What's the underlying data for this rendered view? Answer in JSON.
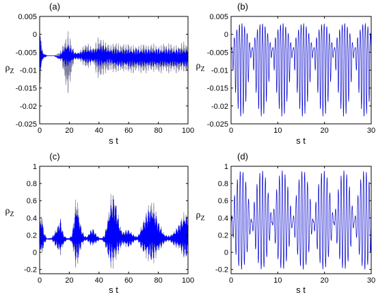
{
  "chart_data": [
    {
      "type": "line",
      "panel_label": "(a)",
      "xlabel": "s t",
      "ylabel": "ρ",
      "ylabel_sub": "Z",
      "xlim": [
        0,
        100
      ],
      "ylim": [
        -0.025,
        0.005
      ],
      "xticks": [
        "0",
        "20",
        "40",
        "60",
        "80",
        "100"
      ],
      "yticks": [
        "-0.025",
        "-0.02",
        "-0.015",
        "-0.01",
        "-0.005",
        "0",
        "0.005"
      ],
      "colors": {
        "envelope": "#7f7fa0",
        "signal": "#0000ff"
      },
      "grid": false,
      "envelope_series": {
        "x": [
          0,
          1,
          2,
          5,
          8,
          10,
          13,
          15,
          16,
          17,
          18,
          19,
          20,
          21,
          22,
          23,
          24,
          26,
          28,
          30,
          32,
          34,
          36,
          38,
          40,
          42,
          44,
          46,
          48,
          50,
          52,
          54,
          56,
          58,
          60,
          62,
          64,
          66,
          68,
          70,
          72,
          74,
          76,
          78,
          80,
          82,
          84,
          86,
          88,
          90,
          92,
          94,
          96,
          98,
          100
        ],
        "upper": [
          -0.001,
          0.001,
          -0.005,
          -0.006,
          -0.006,
          -0.006,
          -0.005,
          -0.004,
          -0.002,
          -0.001,
          0.0,
          0.001,
          0.0,
          -0.001,
          -0.003,
          -0.004,
          -0.005,
          -0.005,
          -0.004,
          -0.003,
          -0.002,
          -0.003,
          -0.004,
          -0.002,
          0.0,
          -0.001,
          -0.002,
          -0.002,
          -0.003,
          -0.002,
          -0.002,
          -0.003,
          -0.002,
          -0.003,
          -0.002,
          -0.003,
          -0.003,
          -0.003,
          -0.003,
          -0.002,
          -0.003,
          -0.003,
          -0.002,
          -0.003,
          -0.003,
          -0.003,
          -0.002,
          -0.003,
          -0.002,
          -0.003,
          -0.003,
          -0.003,
          -0.002,
          -0.002,
          -0.003
        ],
        "lower": [
          -0.015,
          -0.011,
          -0.007,
          -0.006,
          -0.006,
          -0.006,
          -0.007,
          -0.008,
          -0.011,
          -0.013,
          -0.016,
          -0.017,
          -0.015,
          -0.013,
          -0.01,
          -0.008,
          -0.007,
          -0.007,
          -0.008,
          -0.009,
          -0.01,
          -0.009,
          -0.008,
          -0.011,
          -0.013,
          -0.012,
          -0.011,
          -0.011,
          -0.01,
          -0.011,
          -0.011,
          -0.01,
          -0.011,
          -0.01,
          -0.011,
          -0.011,
          -0.011,
          -0.01,
          -0.011,
          -0.011,
          -0.011,
          -0.01,
          -0.011,
          -0.01,
          -0.011,
          -0.011,
          -0.01,
          -0.011,
          -0.011,
          -0.01,
          -0.011,
          -0.011,
          -0.01,
          -0.011,
          -0.011
        ]
      },
      "signal_series": {
        "x": [
          0,
          1,
          2,
          5,
          8,
          10,
          13,
          15,
          16,
          17,
          18,
          19,
          20,
          21,
          22,
          23,
          24,
          26,
          28,
          30,
          32,
          34,
          36,
          38,
          40,
          42,
          44,
          46,
          48,
          50,
          52,
          54,
          56,
          58,
          60,
          62,
          64,
          66,
          68,
          70,
          72,
          74,
          76,
          78,
          80,
          82,
          84,
          86,
          88,
          90,
          92,
          94,
          96,
          98,
          100
        ],
        "upper": [
          0.0,
          -0.002,
          -0.005,
          -0.006,
          -0.006,
          -0.006,
          -0.006,
          -0.005,
          -0.004,
          -0.003,
          -0.003,
          -0.002,
          -0.003,
          -0.004,
          -0.004,
          -0.005,
          -0.005,
          -0.005,
          -0.005,
          -0.004,
          -0.004,
          -0.004,
          -0.004,
          -0.004,
          -0.003,
          -0.003,
          -0.003,
          -0.004,
          -0.004,
          -0.004,
          -0.004,
          -0.004,
          -0.004,
          -0.004,
          -0.004,
          -0.004,
          -0.004,
          -0.004,
          -0.004,
          -0.004,
          -0.004,
          -0.004,
          -0.004,
          -0.004,
          -0.004,
          -0.004,
          -0.004,
          -0.004,
          -0.004,
          -0.004,
          -0.004,
          -0.004,
          -0.004,
          -0.004,
          -0.004
        ],
        "lower": [
          -0.012,
          -0.01,
          -0.007,
          -0.006,
          -0.006,
          -0.006,
          -0.007,
          -0.007,
          -0.008,
          -0.009,
          -0.009,
          -0.009,
          -0.009,
          -0.008,
          -0.008,
          -0.007,
          -0.007,
          -0.007,
          -0.007,
          -0.008,
          -0.008,
          -0.008,
          -0.008,
          -0.008,
          -0.009,
          -0.009,
          -0.009,
          -0.008,
          -0.008,
          -0.009,
          -0.009,
          -0.009,
          -0.009,
          -0.009,
          -0.009,
          -0.009,
          -0.009,
          -0.009,
          -0.009,
          -0.009,
          -0.009,
          -0.009,
          -0.009,
          -0.009,
          -0.009,
          -0.009,
          -0.009,
          -0.009,
          -0.009,
          -0.009,
          -0.009,
          -0.009,
          -0.009,
          -0.009,
          -0.009
        ]
      }
    },
    {
      "type": "line",
      "panel_label": "(b)",
      "xlabel": "s t",
      "ylabel": "ρ",
      "ylabel_sub": "Z",
      "xlim": [
        0,
        30
      ],
      "ylim": [
        -0.025,
        0.005
      ],
      "xticks": [
        "0",
        "10",
        "20",
        "30"
      ],
      "yticks": [
        "-0.025",
        "-0.02",
        "-0.015",
        "-0.01",
        "-0.005",
        "0",
        "0.005"
      ],
      "colors": {
        "signal": "#0000cc"
      },
      "grid": false,
      "oscillation": {
        "baseline": -0.0045,
        "carrier_period": 0.55,
        "beat_period": 4.4,
        "upper_peak": 0.003,
        "lower_peak": -0.023
      }
    },
    {
      "type": "line",
      "panel_label": "(c)",
      "xlabel": "s t",
      "ylabel": "ρ",
      "ylabel_sub": "Z",
      "xlim": [
        0,
        100
      ],
      "ylim": [
        -0.25,
        1.0
      ],
      "xticks": [
        "0",
        "20",
        "40",
        "60",
        "80",
        "100"
      ],
      "yticks": [
        "-0.2",
        "0",
        "0.2",
        "0.4",
        "0.6",
        "0.8",
        "1"
      ],
      "colors": {
        "envelope": "#7f7fa0",
        "signal": "#0000ff"
      },
      "grid": false,
      "envelope_series": {
        "x": [
          0,
          1,
          3,
          5,
          8,
          10,
          12,
          14,
          16,
          18,
          20,
          22,
          24,
          25,
          26,
          28,
          30,
          32,
          34,
          36,
          38,
          40,
          42,
          44,
          46,
          48,
          50,
          52,
          54,
          56,
          58,
          60,
          62,
          64,
          66,
          68,
          70,
          72,
          74,
          76,
          78,
          80,
          82,
          84,
          86,
          88,
          90,
          92,
          94,
          96,
          98,
          100
        ],
        "upper": [
          0.22,
          0.55,
          0.25,
          0.16,
          0.17,
          0.24,
          0.32,
          0.4,
          0.22,
          0.17,
          0.16,
          0.22,
          0.58,
          0.74,
          0.55,
          0.3,
          0.2,
          0.18,
          0.26,
          0.28,
          0.22,
          0.18,
          0.16,
          0.22,
          0.44,
          0.68,
          0.72,
          0.55,
          0.34,
          0.24,
          0.26,
          0.28,
          0.24,
          0.2,
          0.18,
          0.28,
          0.4,
          0.48,
          0.6,
          0.64,
          0.52,
          0.38,
          0.3,
          0.22,
          0.2,
          0.2,
          0.24,
          0.28,
          0.34,
          0.42,
          0.5,
          0.46
        ],
        "lower": [
          0.12,
          -0.12,
          0.08,
          0.15,
          0.15,
          0.08,
          0.02,
          -0.05,
          0.08,
          0.14,
          0.15,
          0.08,
          -0.18,
          -0.24,
          -0.15,
          0.04,
          0.12,
          0.14,
          0.08,
          0.06,
          0.1,
          0.14,
          0.15,
          0.08,
          -0.08,
          -0.2,
          -0.22,
          -0.1,
          0.02,
          0.08,
          0.06,
          0.04,
          0.08,
          0.12,
          0.14,
          0.05,
          -0.03,
          -0.08,
          -0.14,
          -0.16,
          -0.1,
          -0.02,
          0.04,
          0.1,
          0.12,
          0.12,
          0.08,
          0.05,
          0.02,
          -0.04,
          -0.1,
          -0.08
        ]
      },
      "signal_series": {
        "x": [
          0,
          1,
          3,
          5,
          8,
          10,
          12,
          14,
          16,
          18,
          20,
          22,
          24,
          25,
          26,
          28,
          30,
          32,
          34,
          36,
          38,
          40,
          42,
          44,
          46,
          48,
          50,
          52,
          54,
          56,
          58,
          60,
          62,
          64,
          66,
          68,
          70,
          72,
          74,
          76,
          78,
          80,
          82,
          84,
          86,
          88,
          90,
          92,
          94,
          96,
          98,
          100
        ],
        "upper": [
          0.2,
          0.45,
          0.22,
          0.16,
          0.16,
          0.22,
          0.3,
          0.38,
          0.21,
          0.17,
          0.16,
          0.21,
          0.5,
          0.62,
          0.48,
          0.27,
          0.19,
          0.18,
          0.25,
          0.27,
          0.21,
          0.17,
          0.16,
          0.21,
          0.4,
          0.6,
          0.64,
          0.5,
          0.31,
          0.23,
          0.25,
          0.27,
          0.23,
          0.19,
          0.18,
          0.26,
          0.36,
          0.44,
          0.52,
          0.55,
          0.46,
          0.34,
          0.28,
          0.21,
          0.19,
          0.19,
          0.23,
          0.27,
          0.32,
          0.4,
          0.46,
          0.42
        ],
        "lower": [
          0.13,
          -0.06,
          0.1,
          0.15,
          0.15,
          0.1,
          0.04,
          -0.02,
          0.09,
          0.14,
          0.15,
          0.1,
          -0.08,
          -0.14,
          -0.06,
          0.07,
          0.13,
          0.14,
          0.09,
          0.08,
          0.11,
          0.14,
          0.15,
          0.09,
          -0.02,
          -0.12,
          -0.14,
          -0.04,
          0.05,
          0.1,
          0.08,
          0.06,
          0.09,
          0.13,
          0.14,
          0.07,
          0.0,
          -0.04,
          -0.08,
          -0.1,
          -0.05,
          0.01,
          0.06,
          0.11,
          0.13,
          0.13,
          0.09,
          0.07,
          0.04,
          -0.01,
          -0.06,
          -0.04
        ]
      }
    },
    {
      "type": "line",
      "panel_label": "(d)",
      "xlabel": "s t",
      "ylabel": "ρ",
      "ylabel_sub": "Z",
      "xlim": [
        0,
        30
      ],
      "ylim": [
        -0.25,
        1.0
      ],
      "xticks": [
        "0",
        "10",
        "20",
        "30"
      ],
      "yticks": [
        "-0.2",
        "0",
        "0.2",
        "0.4",
        "0.6",
        "0.8",
        "1"
      ],
      "colors": {
        "signal": "#0000cc"
      },
      "grid": false,
      "oscillation": {
        "baseline": 0.35,
        "carrier_period": 0.6,
        "beat_period": 4.4,
        "upper_peak": 0.95,
        "lower_peak": -0.2
      }
    }
  ]
}
